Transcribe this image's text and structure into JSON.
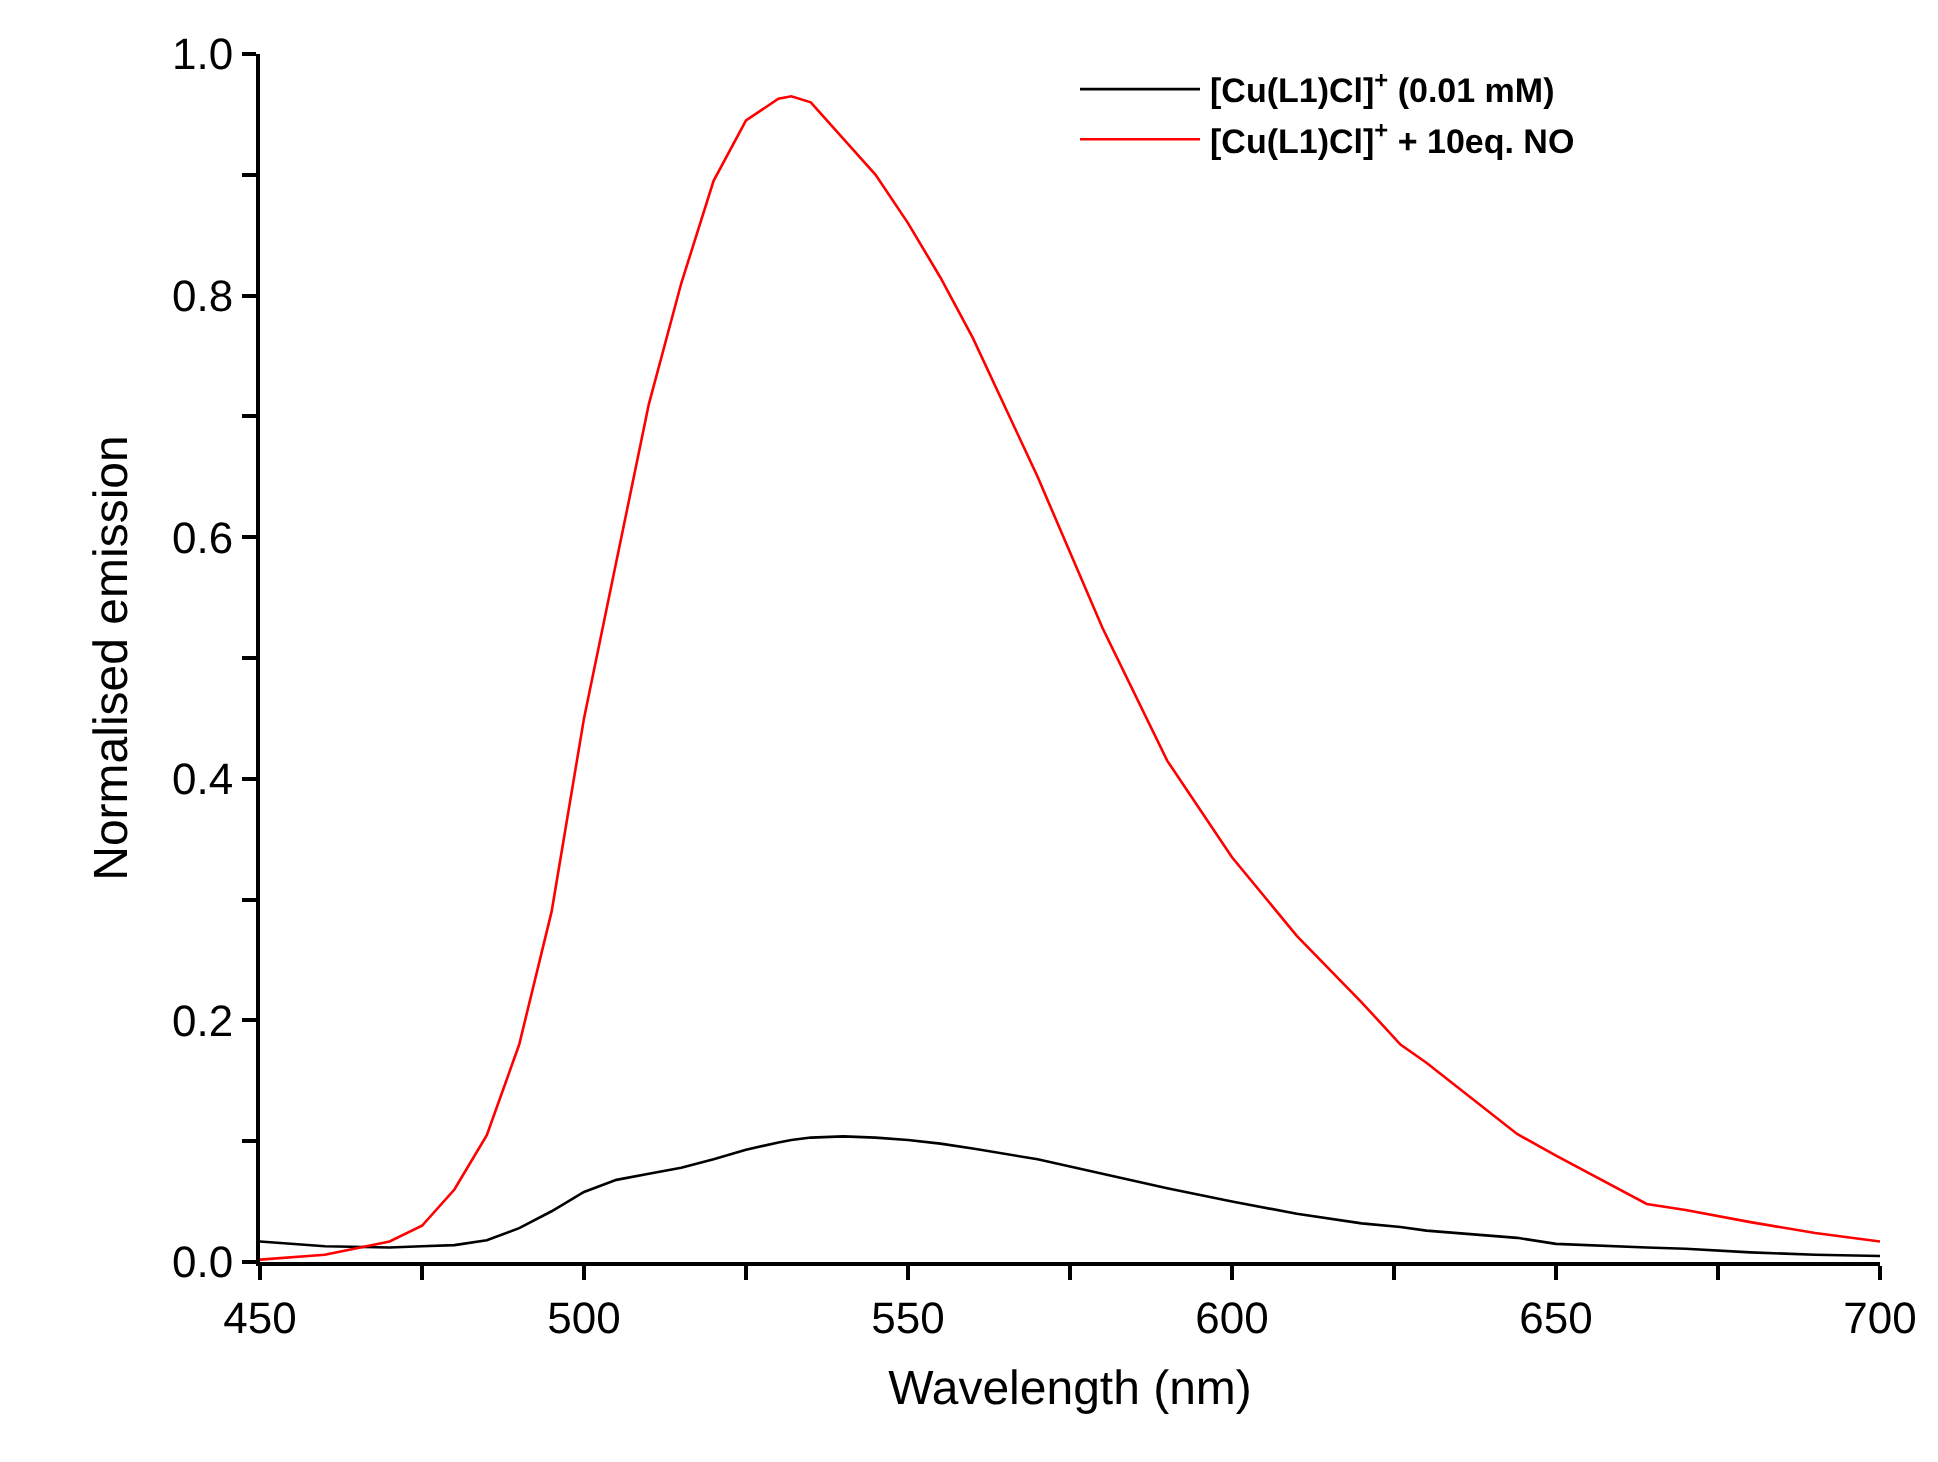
{
  "chart_data": {
    "type": "line",
    "xlabel": "Wavelength (nm)",
    "ylabel": "Normalised emission",
    "x": [
      450,
      460,
      470,
      475,
      480,
      485,
      490,
      495,
      500,
      505,
      510,
      515,
      520,
      525,
      530,
      532,
      535,
      540,
      545,
      550,
      555,
      560,
      570,
      580,
      590,
      600,
      610,
      620,
      626,
      630,
      644,
      650,
      664,
      670,
      680,
      690,
      700
    ],
    "series": [
      {
        "name": "[Cu(L1)Cl]$^{+}$ (0.01 mM)",
        "color": "#000000",
        "values": [
          0.017,
          0.013,
          0.012,
          0.013,
          0.014,
          0.018,
          0.028,
          0.042,
          0.058,
          0.068,
          0.073,
          0.078,
          0.085,
          0.093,
          0.099,
          0.101,
          0.103,
          0.104,
          0.103,
          0.101,
          0.098,
          0.094,
          0.085,
          0.073,
          0.061,
          0.05,
          0.04,
          0.032,
          0.029,
          0.026,
          0.02,
          0.015,
          0.012,
          0.011,
          0.008,
          0.006,
          0.005
        ]
      },
      {
        "name": "[Cu(L1)Cl]$^{+}$ + 10eq. NO",
        "color": "#ff0000",
        "values": [
          0.002,
          0.006,
          0.017,
          0.03,
          0.06,
          0.105,
          0.18,
          0.29,
          0.45,
          0.58,
          0.71,
          0.81,
          0.895,
          0.945,
          0.963,
          0.965,
          0.96,
          0.93,
          0.9,
          0.86,
          0.815,
          0.765,
          0.65,
          0.525,
          0.415,
          0.335,
          0.27,
          0.215,
          0.18,
          0.165,
          0.106,
          0.088,
          0.048,
          0.043,
          0.033,
          0.024,
          0.017
        ]
      }
    ],
    "xlim": [
      450,
      700
    ],
    "xticks": [
      450,
      {
        "value": 475,
        "label": null
      },
      500,
      {
        "value": 525,
        "label": null
      },
      550,
      {
        "value": 575,
        "label": null
      },
      600,
      {
        "value": 625,
        "label": null
      },
      650,
      {
        "value": 675,
        "label": null
      },
      700
    ],
    "ylim": [
      0,
      1.0
    ],
    "yticks": [
      {
        "value": 0,
        "label": "0.0"
      },
      {
        "value": 0.1,
        "label": null
      },
      0.2,
      {
        "value": 0.3,
        "label": null
      },
      0.4,
      {
        "value": 0.5,
        "label": null
      },
      0.6,
      {
        "value": 0.7,
        "label": null
      },
      0.8,
      {
        "value": 0.9,
        "label": null
      },
      {
        "value": 1.0,
        "label": "1.0"
      }
    ],
    "legend": "top right",
    "marker": "none",
    "line_style": "solid"
  }
}
